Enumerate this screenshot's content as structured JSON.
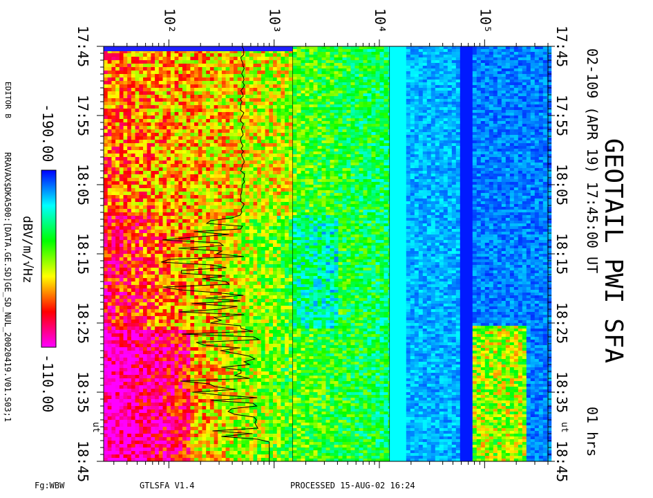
{
  "chart_data": {
    "type": "heatmap",
    "title": "GEOTAIL PWI SFA",
    "subtitle": "02-109 (APR 19) 17:45:00 UT",
    "duration_label": "01 hrs",
    "x_axis": {
      "quantity": "time (UT)",
      "range": [
        "17:45",
        "18:45"
      ],
      "tick_labels": [
        "17:45",
        "17:55",
        "18:05",
        "18:15",
        "18:25",
        "18:35",
        "18:45"
      ],
      "unit_label": "UT"
    },
    "y_axis": {
      "quantity": "frequency",
      "scale": "log",
      "range_hz": [
        24,
        400000
      ],
      "tick_labels": [
        "10²",
        "10³",
        "10⁴",
        "10⁵"
      ],
      "tick_values_hz": [
        100,
        1000,
        10000,
        100000
      ],
      "band_edges_hz": [
        24,
        1500,
        12500,
        400000
      ]
    },
    "colorbar": {
      "unit_label": "dBV/m/√Hz",
      "min_label": "-190.00",
      "max_label": "-110.00",
      "range_db": [
        -190,
        -110
      ],
      "colors": [
        "#0000ff",
        "#00ffff",
        "#00ff00",
        "#ffff00",
        "#ff0000",
        "#ff00ff"
      ]
    },
    "overlay_line": "electron plasma / cutoff frequency trace (black line)",
    "grid": false
  },
  "labels": {
    "editor": "EDITOR B",
    "file_path": "RRAVAX$DKA500:[DATA.GE.SD]GE_SD_NUL_20020419.V01.S03;1",
    "footer_left": "Fg:WBW",
    "footer_mid": "GTLSFA   V1.4",
    "footer_right": "PROCESSED 15-AUG-02  16:24",
    "ut_left": "ut",
    "ut_right": "ut"
  }
}
